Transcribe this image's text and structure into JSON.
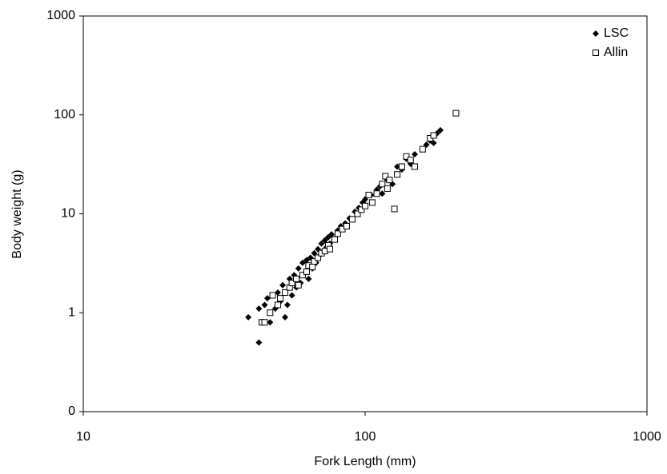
{
  "chart_data": {
    "type": "scatter",
    "x_label": "Fork Length (mm)",
    "y_label": "Body weight (g)",
    "xlog": true,
    "ylog": true,
    "xlim": [
      10,
      1000
    ],
    "ylim": [
      0.1,
      1000
    ],
    "xticks": [
      10,
      100,
      1000
    ],
    "yticks": [
      {
        "value": 0.1,
        "label": "0"
      },
      1,
      10,
      100,
      1000
    ],
    "legend": "top-right",
    "series": [
      {
        "name": "LSC",
        "marker": "diamond",
        "color": "#000000",
        "x": [
          38.5,
          42,
          42,
          44,
          45,
          46,
          48,
          49,
          50,
          51,
          52,
          53,
          54,
          55,
          56,
          57,
          58,
          59,
          60,
          61,
          62,
          63,
          64,
          65,
          66,
          67,
          68,
          69,
          70,
          71,
          72,
          73,
          74,
          75,
          76,
          78,
          80,
          82,
          85,
          88,
          92,
          95,
          98,
          100,
          105,
          110,
          113,
          115,
          120,
          125,
          130,
          135,
          140,
          145,
          150,
          160,
          165,
          170,
          175,
          180,
          185
        ],
        "values": [
          0.9,
          0.5,
          1.1,
          1.2,
          1.4,
          0.8,
          1.1,
          1.6,
          1.3,
          1.9,
          0.9,
          1.2,
          2.2,
          1.5,
          2.4,
          1.8,
          2.8,
          2.0,
          3.2,
          2.5,
          3.4,
          2.2,
          3.6,
          2.8,
          4.0,
          3.2,
          4.4,
          3.8,
          5.0,
          4.2,
          5.4,
          4.6,
          5.8,
          5.0,
          6.2,
          5.6,
          6.8,
          7.5,
          8.0,
          9.0,
          10.5,
          11.5,
          13.0,
          14.0,
          15.5,
          17.5,
          19.0,
          16.0,
          22,
          20,
          30,
          28,
          36,
          32,
          40,
          45,
          50,
          55,
          52,
          65,
          70
        ]
      },
      {
        "name": "Allin",
        "marker": "square",
        "color": "#000000",
        "x": [
          43,
          44,
          46,
          47,
          49,
          50,
          52,
          54,
          55,
          57,
          58,
          60,
          62,
          63,
          65,
          66,
          68,
          70,
          72,
          74,
          75,
          78,
          80,
          83,
          86,
          90,
          94,
          97,
          100,
          103,
          106,
          110,
          115,
          118,
          120,
          122,
          127,
          130,
          135,
          140,
          145,
          150,
          160,
          170,
          175,
          210
        ],
        "values": [
          0.8,
          0.8,
          1.0,
          1.5,
          1.2,
          1.4,
          1.6,
          1.8,
          2.0,
          2.2,
          1.9,
          2.4,
          2.6,
          3.0,
          2.9,
          3.3,
          3.6,
          4.0,
          4.2,
          4.8,
          4.4,
          5.5,
          6.3,
          7.0,
          7.5,
          8.8,
          10,
          11,
          12,
          15.5,
          13,
          16,
          20,
          24,
          18,
          22,
          11.2,
          25,
          30,
          38,
          35,
          30,
          45,
          58,
          62,
          104
        ]
      }
    ]
  }
}
